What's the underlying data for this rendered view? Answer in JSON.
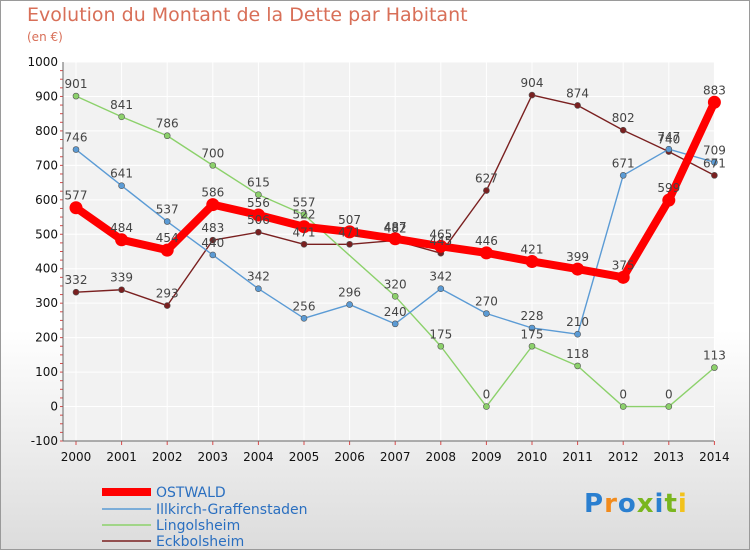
{
  "header": {
    "title": "Evolution du Montant de la Dette par Habitant",
    "unit": "(en €)"
  },
  "logo": {
    "text": "Proxiti",
    "colors": [
      "#2a7fd0",
      "#f28b1c",
      "#2a7fd0",
      "#7ab61f",
      "#2a7fd0",
      "#7ab61f",
      "#f2c21c"
    ]
  },
  "chart_data": {
    "type": "line",
    "x": [
      "2000",
      "2001",
      "2002",
      "2003",
      "2004",
      "2005",
      "2006",
      "2007",
      "2008",
      "2009",
      "2010",
      "2011",
      "2012",
      "2013",
      "2014"
    ],
    "ylim": [
      -100,
      1000
    ],
    "yticks": [
      -100,
      0,
      100,
      200,
      300,
      400,
      500,
      600,
      700,
      800,
      900,
      1000
    ],
    "grid": true,
    "legend_placement": "bottom-left",
    "series": [
      {
        "name": "Eckbolsheim",
        "color": "#7a2020",
        "values": [
          332,
          339,
          293,
          483,
          506,
          471,
          471,
          482,
          445,
          627,
          904,
          874,
          802,
          740,
          671
        ]
      },
      {
        "name": "Lingolsheim",
        "color": "#8cd16b",
        "values": [
          901,
          841,
          786,
          700,
          615,
          557,
          null,
          320,
          175,
          0,
          175,
          118,
          0,
          0,
          113
        ]
      },
      {
        "name": "Illkirch-Graffenstaden",
        "color": "#5b9bd5",
        "values": [
          746,
          641,
          537,
          440,
          342,
          256,
          296,
          240,
          342,
          270,
          228,
          210,
          671,
          747,
          709
        ]
      },
      {
        "name": "OSTWALD",
        "color": "#ff0000",
        "values": [
          577,
          484,
          454,
          586,
          556,
          522,
          507,
          487,
          465,
          446,
          421,
          399,
          375,
          599,
          883
        ]
      }
    ],
    "labels": {
      "Eckbolsheim": [
        "332",
        "339",
        "293",
        "483",
        "506",
        "471",
        "471",
        "482",
        "445",
        "627",
        "904",
        "874",
        "802",
        "740",
        "671"
      ],
      "Lingolsheim": [
        "901",
        "841",
        "786",
        "700",
        "615",
        "557",
        null,
        "320",
        "175",
        "0",
        "175",
        "118",
        "0",
        "0",
        "113"
      ],
      "Illkirch-Graffenstaden": [
        "746",
        "641",
        "537",
        "440",
        "342",
        "256",
        "296",
        "240",
        "342",
        "270",
        "228",
        "210",
        "671",
        "747",
        "709"
      ],
      "OSTWALD": [
        "577",
        "484",
        "454",
        "586",
        "556",
        "522",
        "507",
        "487",
        "465",
        "446",
        "421",
        "399",
        "375",
        "599",
        "883"
      ]
    },
    "legend": [
      "OSTWALD",
      "Illkirch-Graffenstaden",
      "Lingolsheim",
      "Eckbolsheim"
    ]
  }
}
